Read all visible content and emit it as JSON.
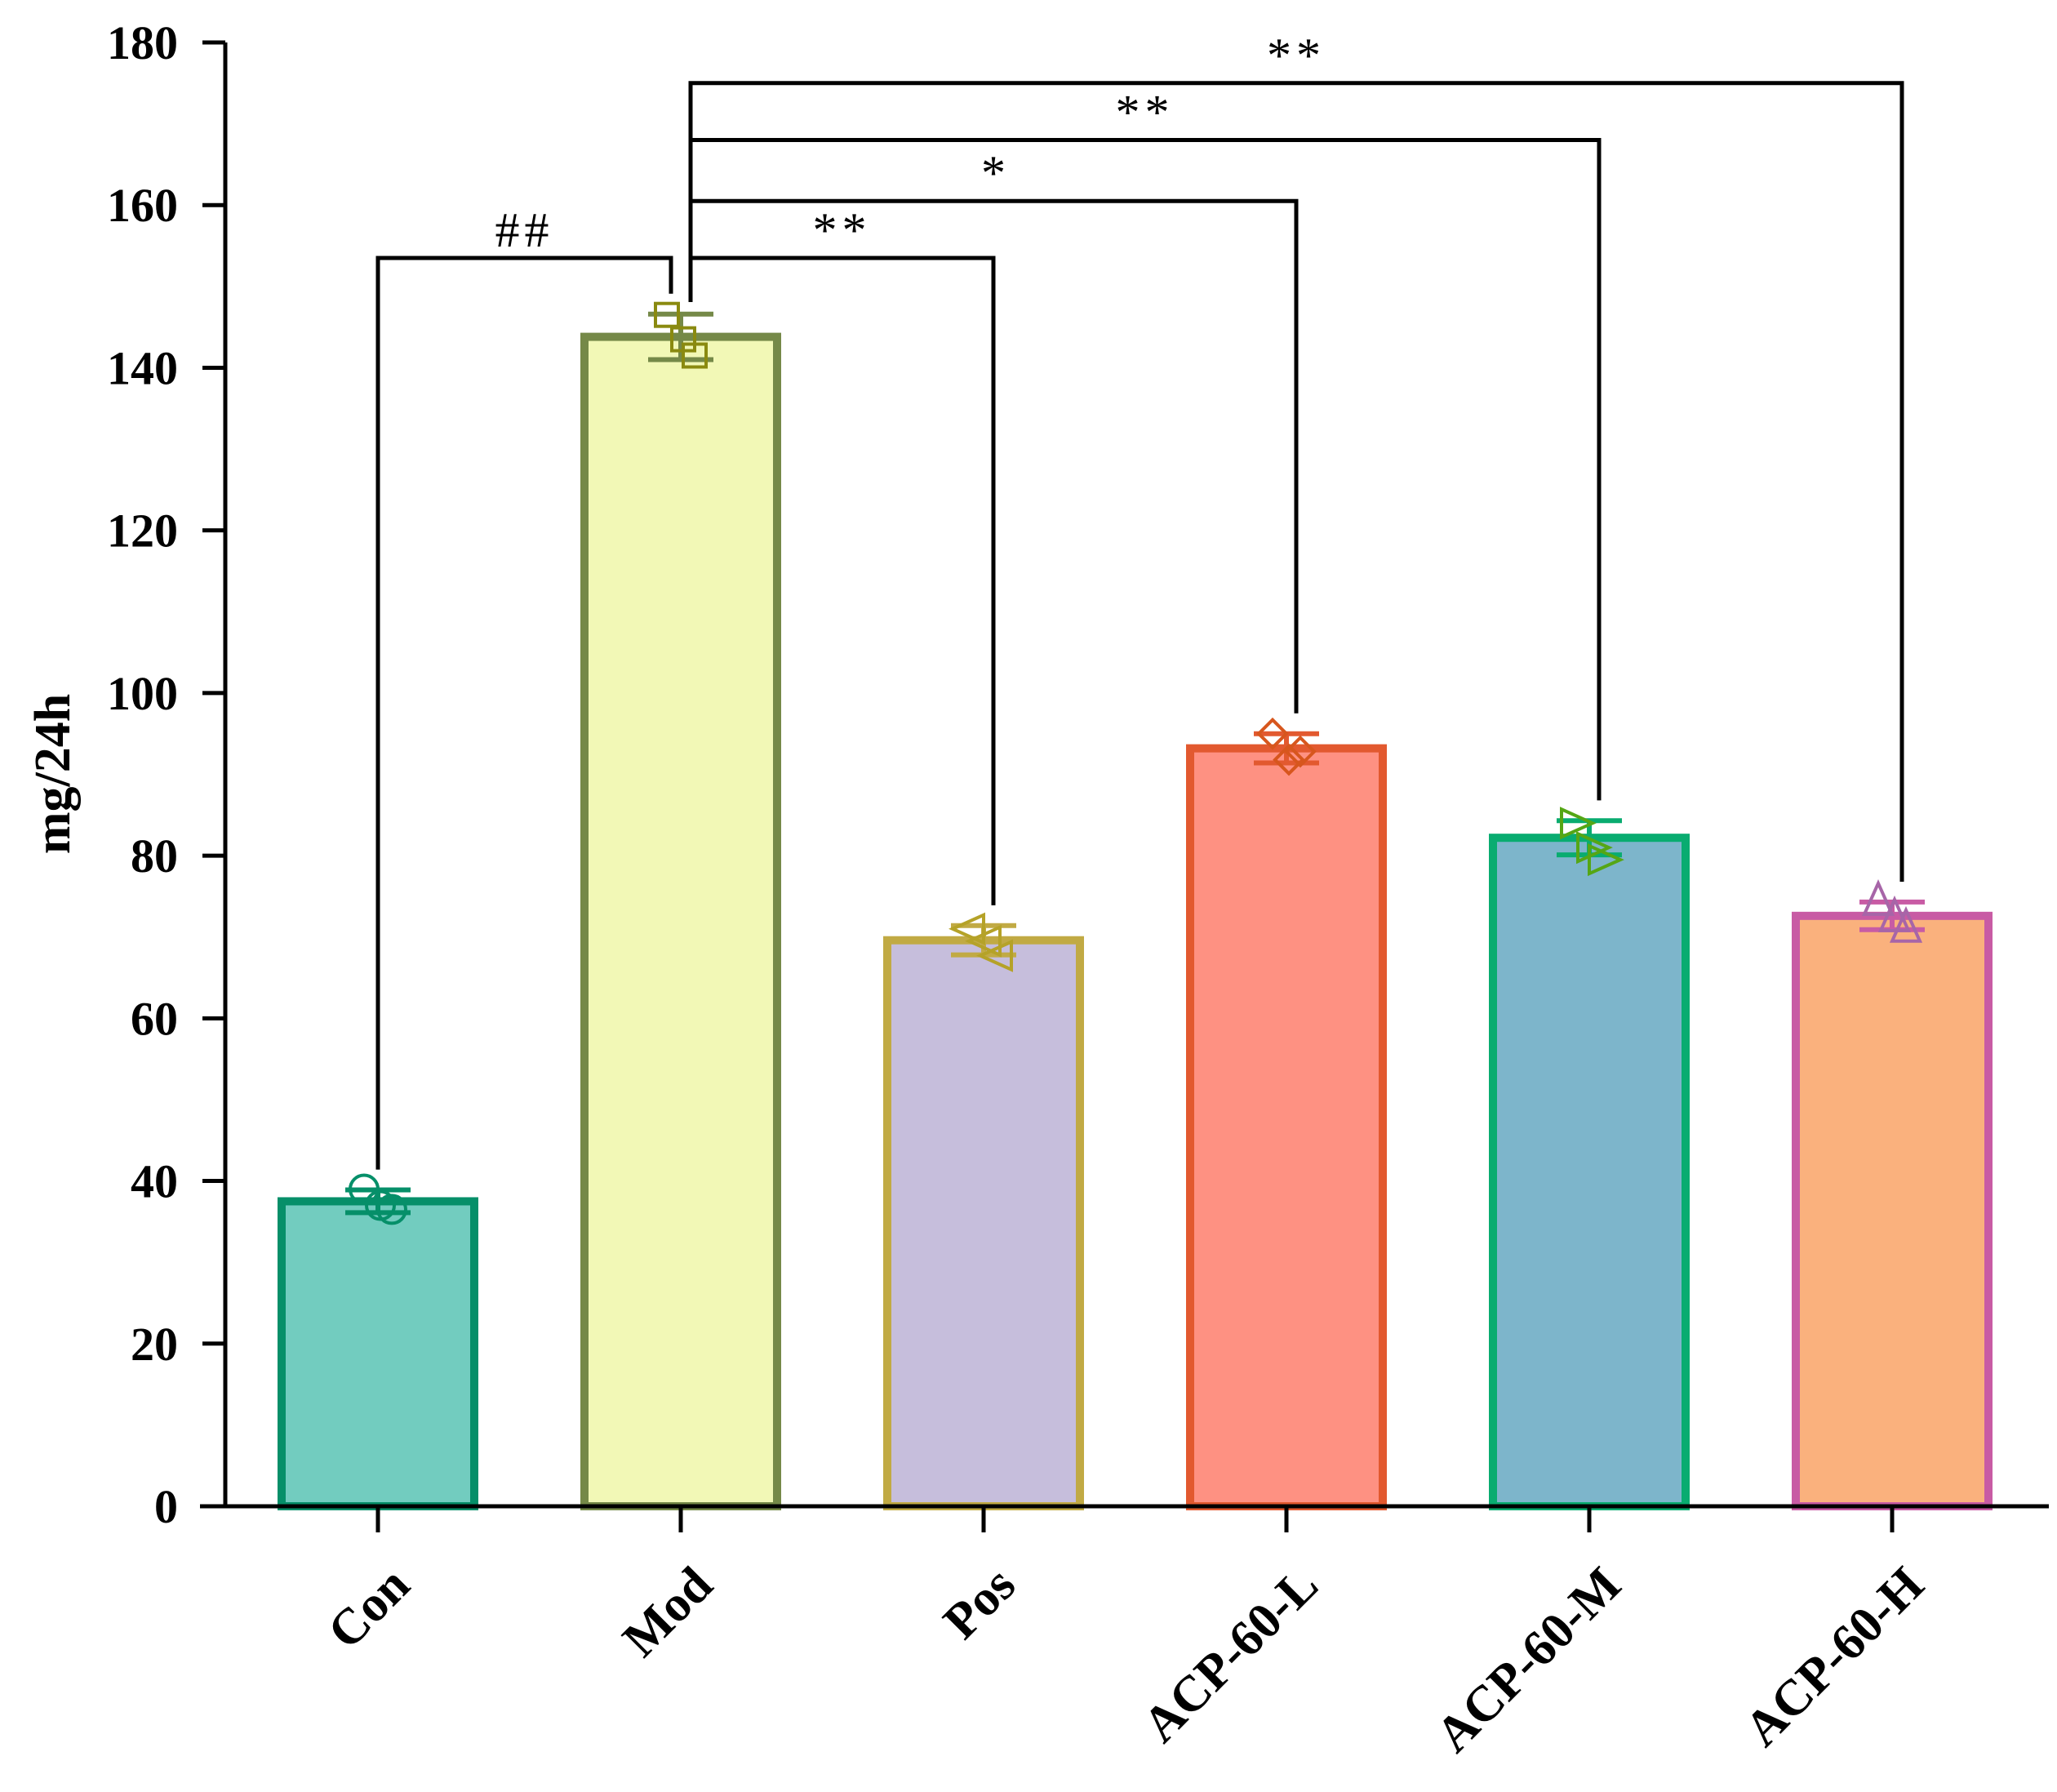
{
  "chart_data": {
    "type": "bar",
    "title": "",
    "xlabel": "",
    "ylabel": "mg/24h",
    "ylim": [
      0,
      180
    ],
    "yticks": [
      0,
      20,
      40,
      60,
      80,
      100,
      120,
      140,
      160,
      180
    ],
    "grid": false,
    "categories": [
      "Con",
      "Mod",
      "Pos",
      "ACP-60-L",
      "ACP-60-M",
      "ACP-60-H"
    ],
    "values": [
      37.5,
      143.8,
      69.6,
      93.2,
      82.2,
      72.6
    ],
    "error": [
      1.4,
      2.8,
      1.8,
      1.8,
      2.1,
      1.7
    ],
    "points": [
      [
        39.0,
        37.0,
        36.5
      ],
      [
        146.5,
        143.5,
        141.5
      ],
      [
        71.0,
        69.5,
        67.7
      ],
      [
        95.0,
        91.8,
        92.8
      ],
      [
        84.0,
        81.0,
        79.5
      ],
      [
        74.5,
        72.5,
        71.2
      ]
    ],
    "markers": [
      "circle",
      "square",
      "triangle-left",
      "diamond",
      "triangle-right",
      "triangle-up"
    ],
    "fill_colors": [
      "#72CCBF",
      "#F2F8B6",
      "#C6BEDC",
      "#FE9182",
      "#7DB5CB",
      "#FAB17D"
    ],
    "edge_colors": [
      "#068F69",
      "#758948",
      "#C1AA44",
      "#E2592F",
      "#09AC70",
      "#C85BA4"
    ],
    "marker_colors": [
      "#068F69",
      "#8A8A10",
      "#B5A228",
      "#D7561D",
      "#55A615",
      "#A765A8"
    ],
    "comparisons": [
      {
        "from": "Con",
        "to": "Mod",
        "label": "##",
        "bar_y": 153.5
      },
      {
        "from": "Mod",
        "to": "Pos",
        "label": "**",
        "bar_y": 153.5
      },
      {
        "from": "Mod",
        "to": "ACP-60-L",
        "label": "*",
        "bar_y": 160.5
      },
      {
        "from": "Mod",
        "to": "ACP-60-M",
        "label": "**",
        "bar_y": 168.0
      },
      {
        "from": "Mod",
        "to": "ACP-60-H",
        "label": "**",
        "bar_y": 175.0
      }
    ]
  }
}
